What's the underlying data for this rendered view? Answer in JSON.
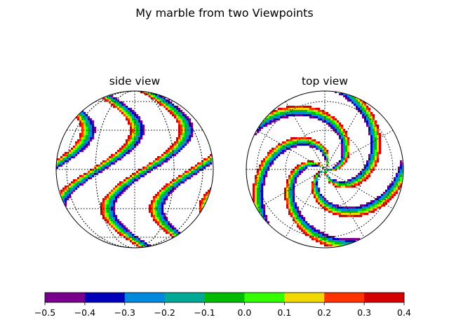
{
  "figure": {
    "title": "My marble from two Viewpoints"
  },
  "chart_data": [
    {
      "type": "heatmap",
      "title": "side view",
      "projection": "orthographic",
      "view": "side",
      "field": "sin-wave bands on sphere surface",
      "graticule": {
        "parallels_deg": [
          -60,
          -30,
          0,
          30,
          60
        ],
        "meridians_deg": [
          -60,
          -30,
          0,
          30,
          60
        ],
        "style": "dotted"
      },
      "colormap": "nipy_spectral (discrete)",
      "vmin": -0.5,
      "vmax": 0.4
    },
    {
      "type": "heatmap",
      "title": "top view",
      "projection": "orthographic",
      "view": "top",
      "field": "spiral bands on sphere surface",
      "graticule": {
        "parallels_deg": [
          30,
          60
        ],
        "meridians_every_deg": 30,
        "style": "dotted"
      },
      "colormap": "nipy_spectral (discrete)",
      "vmin": -0.5,
      "vmax": 0.4
    }
  ],
  "colorbar": {
    "orientation": "horizontal",
    "boundaries": [
      -0.5,
      -0.4,
      -0.3,
      -0.2,
      -0.1,
      0.0,
      0.1,
      0.2,
      0.3,
      0.4
    ],
    "tick_labels": [
      "−0.5",
      "−0.4",
      "−0.3",
      "−0.2",
      "−0.1",
      "0.0",
      "0.1",
      "0.2",
      "0.3",
      "0.4"
    ],
    "colors": [
      "#78008c",
      "#0000bb",
      "#0088dd",
      "#00a896",
      "#00bb00",
      "#33ff00",
      "#f0d800",
      "#ff3300",
      "#d40000"
    ]
  }
}
